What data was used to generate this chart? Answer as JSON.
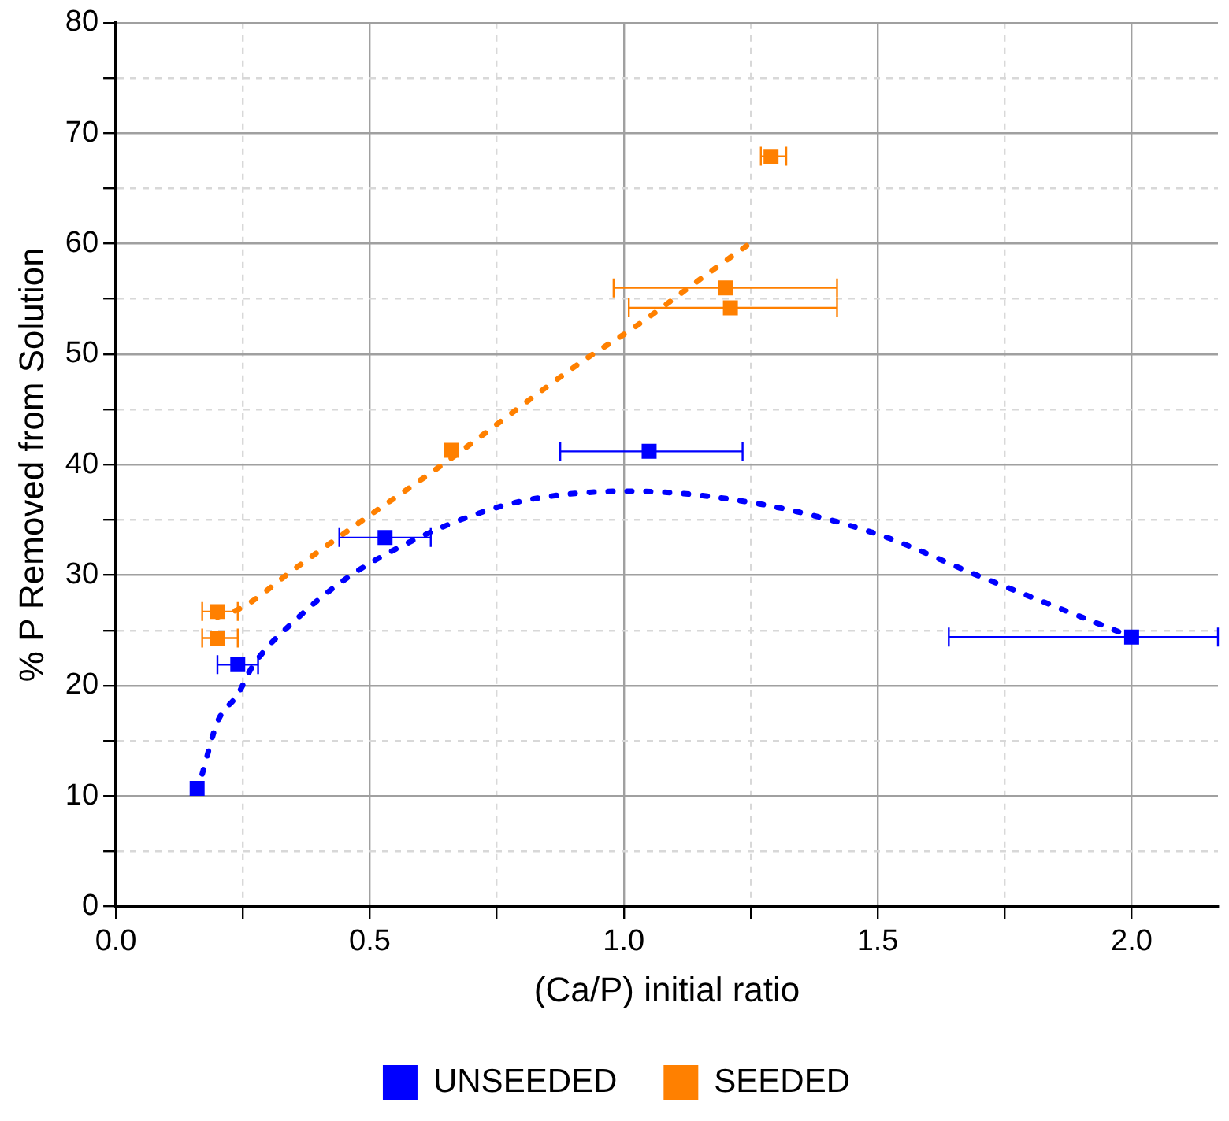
{
  "chart_data": {
    "type": "scatter",
    "xlabel": "(Ca/P) initial ratio",
    "ylabel": "% P Removed from Solution",
    "xlim": [
      0,
      2.17
    ],
    "xticks": [
      {
        "value": 0,
        "label": "0.0"
      },
      {
        "value": 0.25,
        "label": null
      },
      {
        "value": 0.5,
        "label": "0.5"
      },
      {
        "value": 0.75,
        "label": null
      },
      {
        "value": 1,
        "label": "1.0"
      },
      {
        "value": 1.25,
        "label": null
      },
      {
        "value": 1.5,
        "label": "1.5"
      },
      {
        "value": 1.75,
        "label": null
      },
      {
        "value": 2,
        "label": "2.0"
      }
    ],
    "ylim": [
      0,
      80
    ],
    "yticks": [
      0,
      {
        "value": 5,
        "label": null
      },
      10,
      {
        "value": 15,
        "label": null
      },
      20,
      {
        "value": 25,
        "label": null
      },
      30,
      {
        "value": 35,
        "label": null
      },
      40,
      {
        "value": 45,
        "label": null
      },
      50,
      {
        "value": 55,
        "label": null
      },
      60,
      {
        "value": 65,
        "label": null
      },
      70,
      {
        "value": 75,
        "label": null
      },
      80
    ],
    "grid": true,
    "legend": "bottom",
    "marker": "square",
    "series": [
      {
        "name": "UNSEEDED",
        "color": "#0000ff",
        "x": [
          0.16,
          0.24,
          0.53,
          1.05,
          2.0
        ],
        "values": [
          10.7,
          21.9,
          33.4,
          41.2,
          24.4
        ],
        "xerrors": [
          null,
          [
            0.2,
            0.28
          ],
          [
            0.44,
            0.62
          ],
          [
            0.875,
            1.234
          ],
          [
            1.64,
            2.17
          ]
        ]
      },
      {
        "name": "SEEDED",
        "color": "#ff8000",
        "x": [
          0.2,
          0.2,
          0.66,
          1.2,
          1.21,
          1.29
        ],
        "values": [
          26.7,
          24.3,
          41.3,
          56.0,
          54.2,
          67.9
        ],
        "xerrors": [
          [
            0.17,
            0.24
          ],
          [
            0.17,
            0.24
          ],
          null,
          [
            0.98,
            1.42
          ],
          [
            1.01,
            1.42
          ],
          [
            1.27,
            1.32
          ]
        ]
      },
      {
        "type": "line",
        "color": "#0000ff",
        "line_style": "dotted",
        "marker": "none",
        "x": [
          0.17,
          0.2,
          0.24,
          0.27,
          0.36,
          0.46,
          0.57,
          0.69,
          0.81,
          1.01,
          1.26,
          1.5,
          1.7,
          1.94,
          2.0
        ],
        "values": [
          12,
          16.7,
          19.2,
          21.8,
          26.2,
          29.9,
          32.8,
          35.2,
          36.8,
          37.6,
          36.5,
          33.7,
          29.9,
          25.5,
          24.4
        ]
      },
      {
        "type": "line",
        "color": "#ff8000",
        "line_style": "dotted",
        "marker": "none",
        "x": [
          0.2,
          0.25,
          0.35,
          0.49,
          0.64,
          0.92,
          1.02,
          1.16,
          1.26
        ],
        "values": [
          26.2,
          27.1,
          30.5,
          35.1,
          39.9,
          49.4,
          52.4,
          57.1,
          60.4
        ]
      }
    ]
  }
}
